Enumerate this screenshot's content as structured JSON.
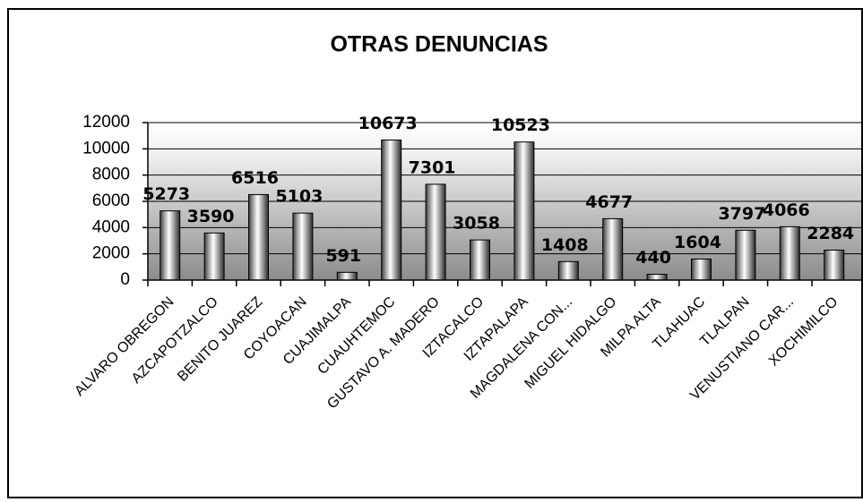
{
  "chart_data": {
    "type": "bar",
    "title": "OTRAS DENUNCIAS",
    "categories": [
      "ALVARO OBREGON",
      "AZCAPOTZALCO",
      "BENITO JUAREZ",
      "COYOACAN",
      "CUAJIMALPA",
      "CUAUHTEMOC",
      "GUSTAVO A. MADERO",
      "IZTACALCO",
      "IZTAPALAPA",
      "MAGDALENA CON...",
      "MIGUEL HIDALGO",
      "MILPA ALTA",
      "TLAHUAC",
      "TLALPAN",
      "VENUSTIANO CAR...",
      "XOCHIMILCO"
    ],
    "values": [
      5273,
      3590,
      6516,
      5103,
      591,
      10673,
      7301,
      3058,
      10523,
      1408,
      4677,
      440,
      1604,
      3797,
      4066,
      2284
    ],
    "ylim": [
      0,
      12000
    ],
    "yticks": [
      0,
      2000,
      4000,
      6000,
      8000,
      10000,
      12000
    ],
    "grid": true
  }
}
